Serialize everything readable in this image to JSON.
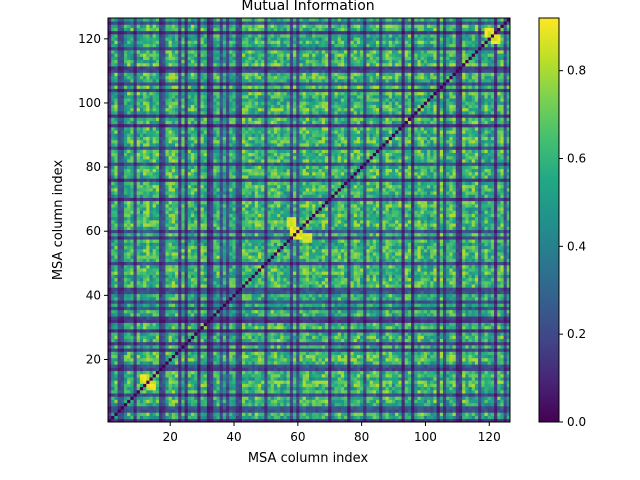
{
  "chart_data": {
    "type": "heatmap",
    "title": "Mutual Information",
    "xlabel": "MSA column index",
    "ylabel": "MSA column index",
    "n": 126,
    "xlim": [
      1,
      126
    ],
    "ylim": [
      1,
      126
    ],
    "x_ticks": [
      20,
      40,
      60,
      80,
      100,
      120
    ],
    "y_ticks": [
      20,
      40,
      60,
      80,
      100,
      120
    ],
    "colormap": "viridis",
    "color_range": [
      0.0,
      0.92
    ],
    "colorbar_ticks": [
      0.0,
      0.2,
      0.4,
      0.6,
      0.8
    ],
    "colorbar_tick_labels": [
      "0.0",
      "0.2",
      "0.4",
      "0.6",
      "0.8"
    ],
    "diagonal_value": 0.0,
    "low_columns": [
      1,
      4,
      5,
      9,
      17,
      18,
      23,
      25,
      29,
      32,
      33,
      36,
      38,
      41,
      42,
      50,
      58,
      60,
      70,
      76,
      81,
      86,
      93,
      96,
      104,
      106,
      110,
      111,
      117,
      122,
      125
    ],
    "bright_block_pairs": [
      [
        120,
        122
      ],
      [
        12,
        14
      ],
      [
        60,
        59
      ],
      [
        58,
        63
      ]
    ],
    "values_note_free": true
  },
  "colors": {
    "viridis_stops": [
      "#440154",
      "#482475",
      "#414487",
      "#355f8d",
      "#2a788e",
      "#21918c",
      "#22a884",
      "#44bf70",
      "#7ad151",
      "#bddf26",
      "#fde725"
    ]
  }
}
